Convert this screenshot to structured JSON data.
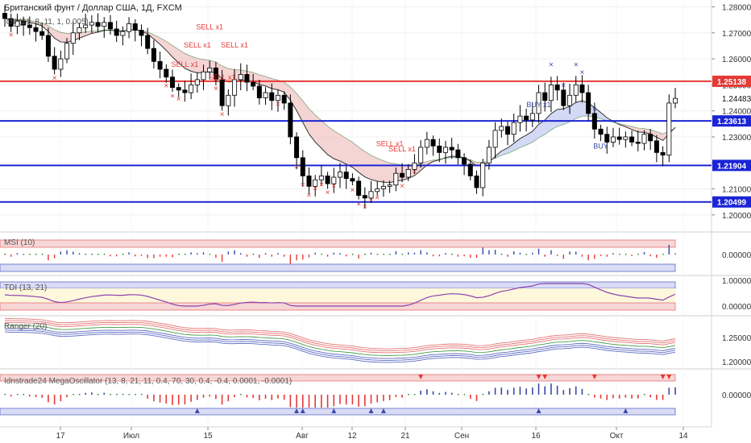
{
  "chart_data": {
    "type": "candlestick",
    "title": "Британский фунт / Доллар США, 1Д, FXCM",
    "indicator_label": "Ichi (21, 8, 11, 1, 0.005)",
    "price_axis": {
      "min": 1.195,
      "max": 1.282,
      "ticks": [
        1.28,
        1.27,
        1.26,
        1.25,
        1.24,
        1.23,
        1.22,
        1.21,
        1.2
      ],
      "tick_labels": [
        "1.28000",
        "1.27000",
        "1.26000",
        "1.25000",
        "1.24000",
        "1.23000",
        "1.22000",
        "1.21000",
        "1.20000"
      ]
    },
    "time_labels": [
      "17",
      "Июл",
      "15",
      "Авг",
      "12",
      "21",
      "Сен",
      "16",
      "Окт",
      "14"
    ],
    "levels": [
      {
        "value": 1.25138,
        "label": "1.25138",
        "color": "#e53935"
      },
      {
        "value": 1.23613,
        "label": "1.23613",
        "color": "#1a24d6"
      },
      {
        "value": 1.21904,
        "label": "1.21904",
        "color": "#1a24d6"
      },
      {
        "value": 1.20499,
        "label": "1.20499",
        "color": "#1a24d6"
      }
    ],
    "last_price": {
      "value": 1.24483,
      "label": "1.24483"
    },
    "closes": [
      1.2755,
      1.2725,
      1.2745,
      1.273,
      1.272,
      1.2705,
      1.269,
      1.261,
      1.256,
      1.26,
      1.266,
      1.27,
      1.272,
      1.273,
      1.274,
      1.2725,
      1.274,
      1.2715,
      1.269,
      1.2705,
      1.2735,
      1.271,
      1.269,
      1.264,
      1.259,
      1.256,
      1.253,
      1.249,
      1.248,
      1.247,
      1.25,
      1.252,
      1.255,
      1.2565,
      1.252,
      1.242,
      1.246,
      1.252,
      1.254,
      1.251,
      1.2495,
      1.245,
      1.247,
      1.244,
      1.246,
      1.243,
      1.23,
      1.222,
      1.215,
      1.211,
      1.2135,
      1.215,
      1.212,
      1.2145,
      1.2165,
      1.214,
      1.213,
      1.2075,
      1.2065,
      1.209,
      1.21,
      1.211,
      1.2115,
      1.216,
      1.2145,
      1.2175,
      1.22,
      1.226,
      1.229,
      1.2265,
      1.224,
      1.226,
      1.225,
      1.222,
      1.2195,
      1.215,
      1.2105,
      1.22,
      1.226,
      1.2325,
      1.234,
      1.231,
      1.2355,
      1.238,
      1.2365,
      1.239,
      1.247,
      1.244,
      1.25,
      1.248,
      1.242,
      1.246,
      1.25,
      1.247,
      1.239,
      1.233,
      1.231,
      1.228,
      1.23,
      1.229,
      1.23,
      1.228,
      1.2275,
      1.231,
      1.2285,
      1.224,
      1.223,
      1.243,
      1.2448
    ],
    "sub_panels": [
      {
        "label": "MSI (10)",
        "ticks": [
          "0.00000"
        ]
      },
      {
        "label": "TDI (13, 21)",
        "ticks": [
          "1.00000",
          "0.00000"
        ]
      },
      {
        "label": "Ranger (20)",
        "ticks": [
          "1.25000",
          "1.20000"
        ]
      },
      {
        "label": "Idnstrade24 MegaOscillator (13, 8, 21, 11, 0.4, 70, 30, 0.4, -0.4, 0.0001, -0.0001)",
        "ticks": [
          "0.00000"
        ]
      }
    ],
    "signals": {
      "sell_text": "SELL x1",
      "buy_text": "BUY x1",
      "sell_labels": [
        "SELL x1",
        "SELL x1",
        "SELL x1",
        "SELL x1",
        "SELL x1",
        "SELL x1",
        "SELL x1"
      ],
      "buy_labels": [
        "BUY x1",
        "BUY"
      ]
    },
    "colors": {
      "up": "#ffffff",
      "down": "#000000",
      "sell": "#e53935",
      "buy": "#3949ab",
      "cloud_bear": "#f3c9c9",
      "cloud_bull": "#c9cff3"
    }
  }
}
